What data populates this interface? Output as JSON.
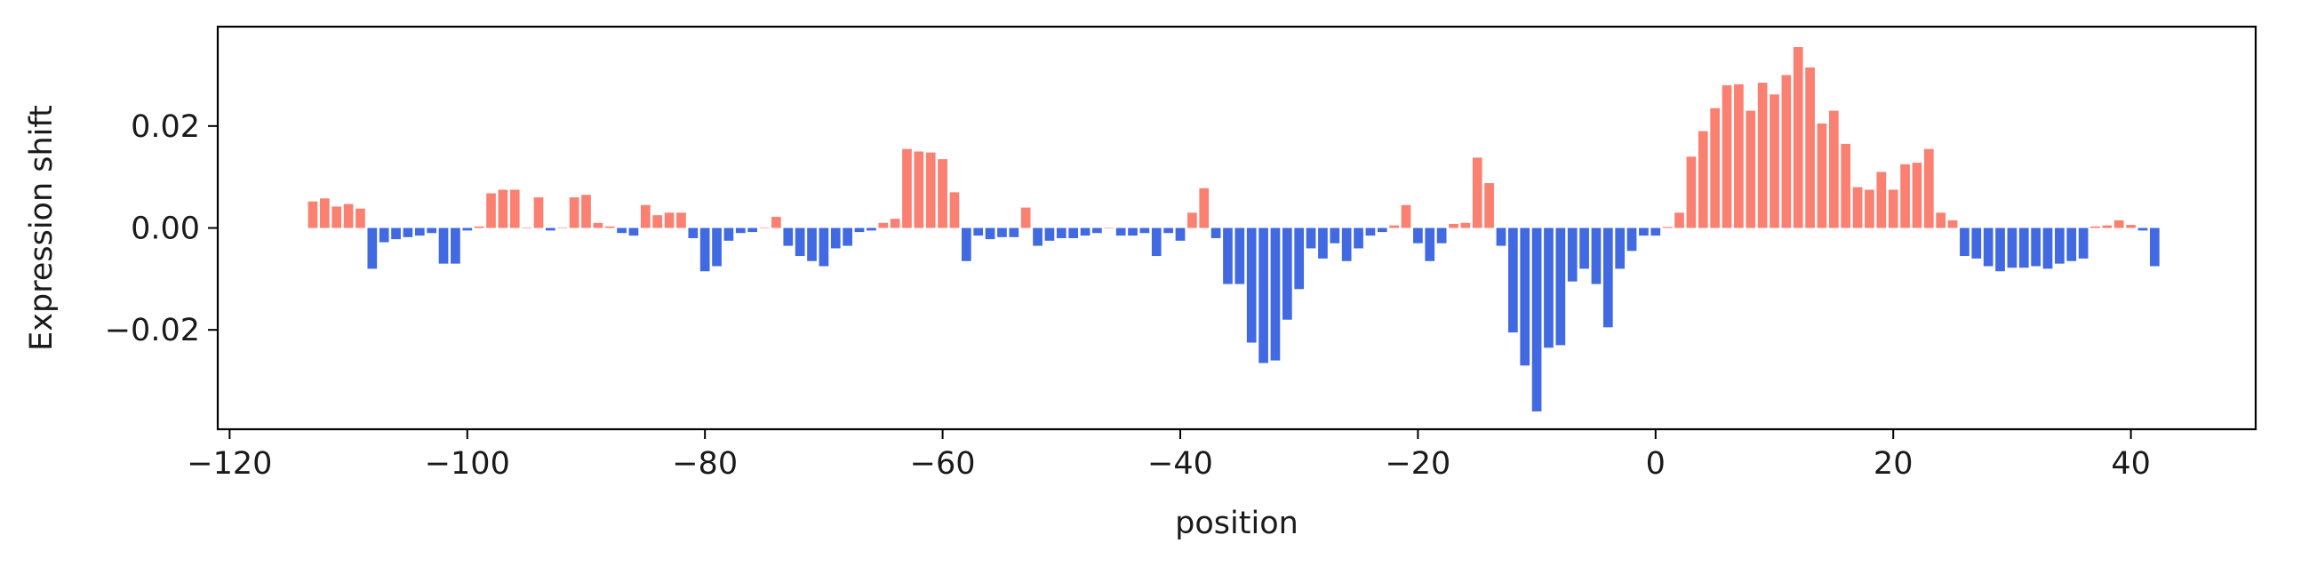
{
  "chart_data": {
    "type": "bar",
    "xlabel": "position",
    "ylabel": "Expression shift",
    "xlim": [
      -121,
      50.5
    ],
    "ylim": [
      -0.0395,
      0.0395
    ],
    "xticks": [
      -120,
      -100,
      -80,
      -60,
      -40,
      -20,
      0,
      20,
      40
    ],
    "xtick_labels": [
      "−120",
      "−100",
      "−80",
      "−60",
      "−40",
      "−20",
      "0",
      "20",
      "40"
    ],
    "yticks": [
      0.02,
      0.0,
      -0.02
    ],
    "ytick_labels": [
      "0.02",
      "0.00",
      "−0.02"
    ],
    "grid": false,
    "colors": {
      "positive": "#fa8072",
      "negative": "#4169e1",
      "axis": "#000000"
    },
    "x_start": -113,
    "values": [
      0.0052,
      0.0058,
      0.0042,
      0.0047,
      0.0038,
      -0.008,
      -0.0028,
      -0.0022,
      -0.0018,
      -0.0015,
      -0.001,
      -0.007,
      -0.007,
      -0.0005,
      0.0003,
      0.0068,
      0.0075,
      0.0075,
      0.0001,
      0.006,
      -0.0005,
      0.0001,
      0.006,
      0.0065,
      0.001,
      0.0003,
      -0.001,
      -0.0015,
      0.0045,
      0.0025,
      0.003,
      0.003,
      -0.002,
      -0.0085,
      -0.0075,
      -0.0025,
      -0.001,
      -0.0008,
      0.0001,
      0.0022,
      -0.0035,
      -0.0055,
      -0.0065,
      -0.0075,
      -0.004,
      -0.0035,
      -0.0008,
      -0.0005,
      0.001,
      0.0018,
      0.0155,
      0.015,
      0.0148,
      0.0135,
      0.007,
      -0.0065,
      -0.0015,
      -0.0022,
      -0.0018,
      -0.0018,
      0.004,
      -0.0035,
      -0.0025,
      -0.002,
      -0.002,
      -0.0015,
      -0.001,
      0.0,
      -0.0015,
      -0.0015,
      -0.001,
      -0.0055,
      -0.001,
      -0.0025,
      0.003,
      0.0078,
      -0.002,
      -0.011,
      -0.011,
      -0.0225,
      -0.0265,
      -0.026,
      -0.018,
      -0.012,
      -0.004,
      -0.006,
      -0.003,
      -0.0065,
      -0.004,
      -0.0015,
      -0.0008,
      0.0005,
      0.0045,
      -0.003,
      -0.0065,
      -0.003,
      0.0008,
      0.001,
      0.0138,
      0.0088,
      -0.0035,
      -0.0205,
      -0.027,
      -0.036,
      -0.0235,
      -0.023,
      -0.0105,
      -0.008,
      -0.011,
      -0.0195,
      -0.008,
      -0.0045,
      -0.0015,
      -0.0015,
      0.0002,
      0.003,
      0.014,
      0.019,
      0.0235,
      0.028,
      0.0282,
      0.023,
      0.0285,
      0.0262,
      0.03,
      0.0355,
      0.0315,
      0.0205,
      0.023,
      0.0165,
      0.008,
      0.0075,
      0.011,
      0.0075,
      0.0125,
      0.0128,
      0.0155,
      0.003,
      0.0015,
      -0.0055,
      -0.006,
      -0.0075,
      -0.0085,
      -0.0078,
      -0.0078,
      -0.0075,
      -0.008,
      -0.007,
      -0.0065,
      -0.006,
      0.0003,
      0.0005,
      0.0015,
      0.0006,
      -0.0005,
      -0.0075
    ]
  }
}
